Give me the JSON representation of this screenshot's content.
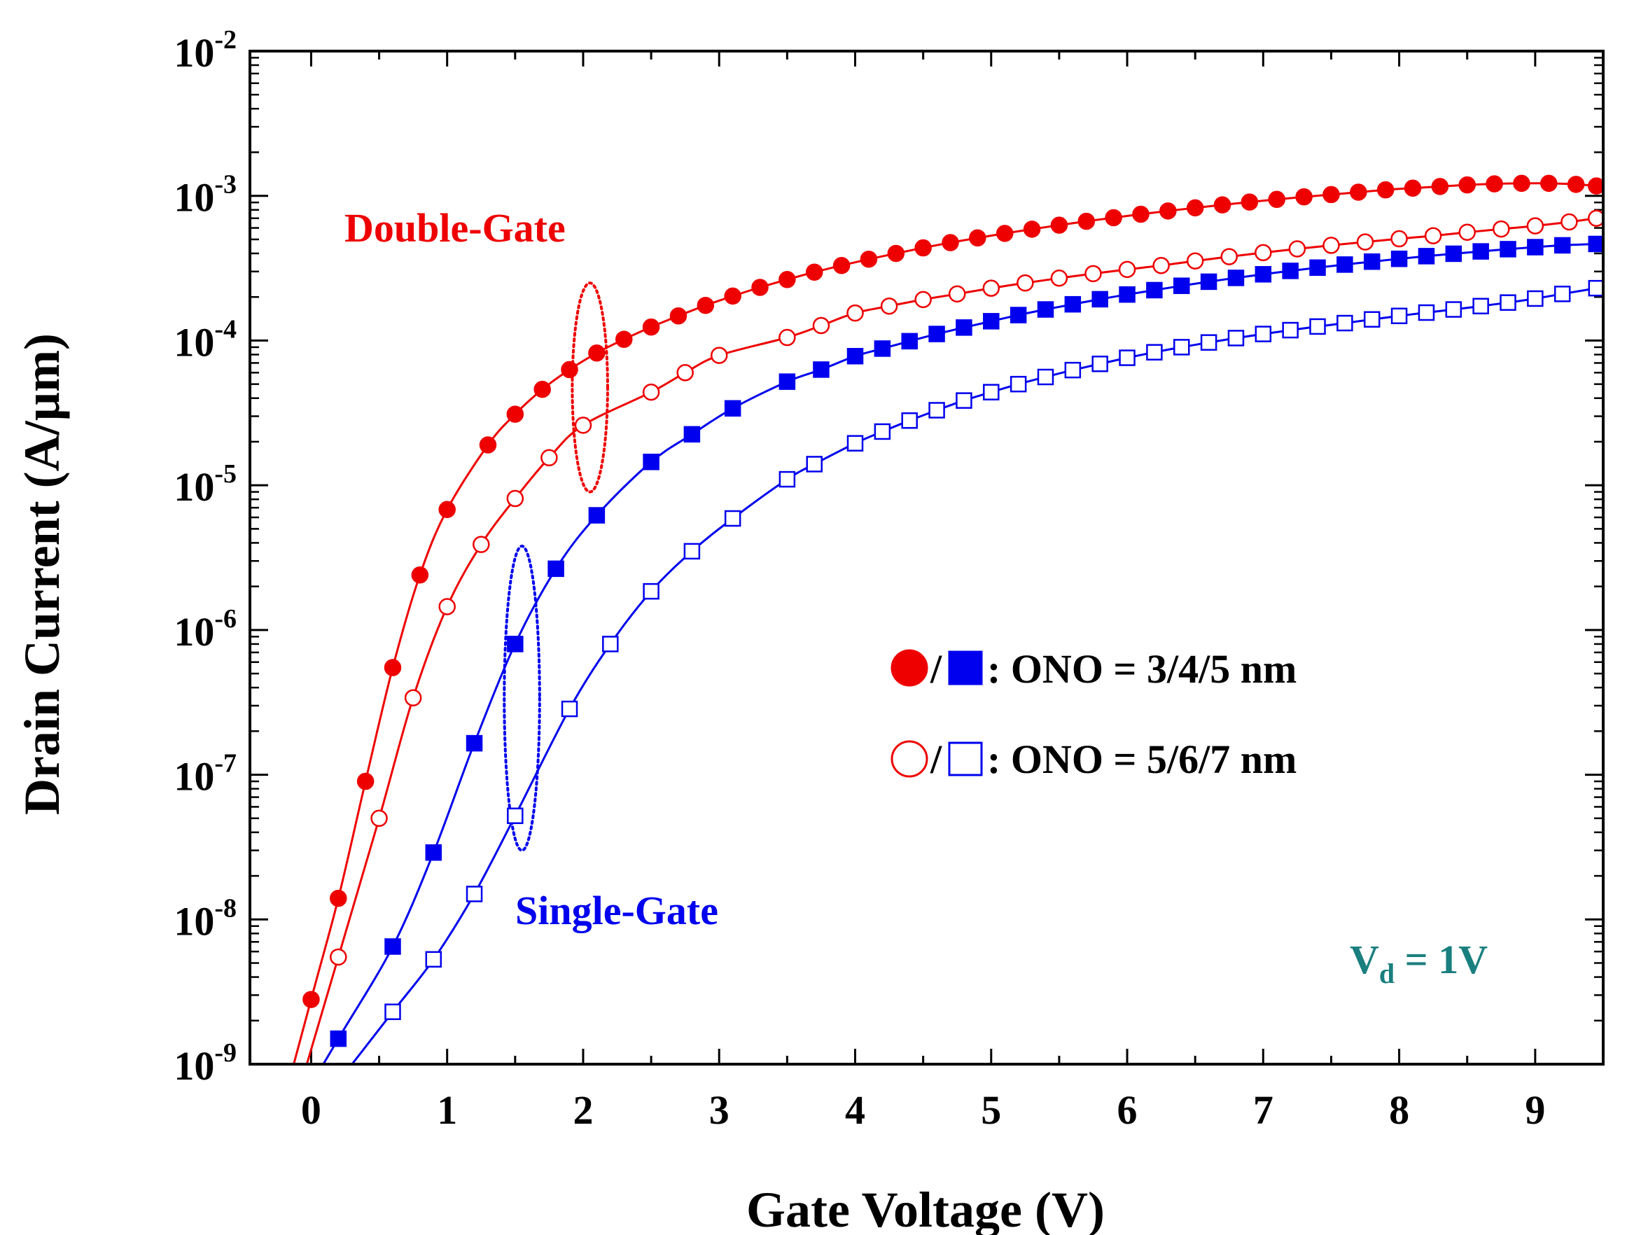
{
  "chart_data": {
    "type": "line",
    "xlabel": "Gate Voltage (V)",
    "ylabel": "Drain Current (A/µm)",
    "xlim": [
      -0.45,
      9.5
    ],
    "ylim": [
      1e-09,
      0.01
    ],
    "yscale": "log",
    "x_ticks": [
      "0",
      "1",
      "2",
      "3",
      "4",
      "5",
      "6",
      "7",
      "8",
      "9"
    ],
    "y_ticks": [
      {
        "base": "10",
        "exp": "-9"
      },
      {
        "base": "10",
        "exp": "-8"
      },
      {
        "base": "10",
        "exp": "-7"
      },
      {
        "base": "10",
        "exp": "-6"
      },
      {
        "base": "10",
        "exp": "-5"
      },
      {
        "base": "10",
        "exp": "-4"
      },
      {
        "base": "10",
        "exp": "-3"
      },
      {
        "base": "10",
        "exp": "-2"
      }
    ],
    "colors": {
      "red": "#ee0000",
      "blue": "#0000ee",
      "teal": "#1a7f7f"
    },
    "series": [
      {
        "name": "Double-Gate, ONO = 3/4/5 nm",
        "color": "#ee0000",
        "marker": "circle",
        "filled": true,
        "x": [
          0.0,
          0.2,
          0.4,
          0.6,
          0.8,
          1.0,
          1.3,
          1.5,
          1.7,
          1.9,
          2.1,
          2.3,
          2.5,
          2.7,
          2.9,
          3.1,
          3.3,
          3.5,
          3.7,
          3.9,
          4.1,
          4.3,
          4.5,
          4.7,
          4.9,
          5.1,
          5.3,
          5.5,
          5.7,
          5.9,
          6.1,
          6.3,
          6.5,
          6.7,
          6.9,
          7.1,
          7.3,
          7.5,
          7.7,
          7.9,
          8.1,
          8.3,
          8.5,
          8.7,
          8.9,
          9.1,
          9.3,
          9.45
        ],
        "y": [
          2.8e-09,
          1.4e-08,
          9e-08,
          5.5e-07,
          2.4e-06,
          6.8e-06,
          1.9e-05,
          3.1e-05,
          4.6e-05,
          6.3e-05,
          8.2e-05,
          0.000102,
          0.000124,
          0.000148,
          0.000175,
          0.000203,
          0.000233,
          0.000264,
          0.000297,
          0.00033,
          0.000365,
          0.0004,
          0.000437,
          0.000475,
          0.000512,
          0.00055,
          0.000588,
          0.000627,
          0.000667,
          0.000706,
          0.000746,
          0.000786,
          0.000826,
          0.000866,
          0.000906,
          0.000945,
          0.000984,
          0.00102,
          0.00106,
          0.0011,
          0.00113,
          0.00116,
          0.00119,
          0.00121,
          0.00122,
          0.00122,
          0.0012,
          0.00117
        ]
      },
      {
        "name": "Double-Gate, ONO = 5/6/7 nm",
        "color": "#ee0000",
        "marker": "circle",
        "filled": false,
        "x": [
          0.2,
          0.5,
          0.75,
          1.0,
          1.25,
          1.5,
          1.75,
          2.0,
          2.5,
          2.75,
          3.0,
          3.5,
          3.75,
          4.0,
          4.25,
          4.5,
          4.75,
          5.0,
          5.25,
          5.5,
          5.75,
          6.0,
          6.25,
          6.5,
          6.75,
          7.0,
          7.25,
          7.5,
          7.75,
          8.0,
          8.25,
          8.5,
          8.75,
          9.0,
          9.25,
          9.45
        ],
        "y": [
          5.5e-09,
          5e-08,
          3.4e-07,
          1.45e-06,
          3.9e-06,
          8.1e-06,
          1.55e-05,
          2.6e-05,
          4.4e-05,
          6e-05,
          7.9e-05,
          0.000105,
          0.000127,
          0.000155,
          0.000173,
          0.000192,
          0.00021,
          0.00023,
          0.00025,
          0.00027,
          0.00029,
          0.00031,
          0.00033,
          0.000355,
          0.00038,
          0.000405,
          0.00043,
          0.000455,
          0.00048,
          0.000505,
          0.00053,
          0.00056,
          0.00059,
          0.00062,
          0.00066,
          0.0007
        ]
      },
      {
        "name": "Single-Gate, ONO = 3/4/5 nm",
        "color": "#0000ee",
        "marker": "square",
        "filled": true,
        "x": [
          0.2,
          0.6,
          0.9,
          1.2,
          1.5,
          1.8,
          2.1,
          2.5,
          2.8,
          3.1,
          3.5,
          3.75,
          4.0,
          4.2,
          4.4,
          4.6,
          4.8,
          5.0,
          5.2,
          5.4,
          5.6,
          5.8,
          6.0,
          6.2,
          6.4,
          6.6,
          6.8,
          7.0,
          7.2,
          7.4,
          7.6,
          7.8,
          8.0,
          8.2,
          8.4,
          8.6,
          8.8,
          9.0,
          9.2,
          9.45
        ],
        "y": [
          1.5e-09,
          6.5e-09,
          2.9e-08,
          1.65e-07,
          8e-07,
          2.65e-06,
          6.2e-06,
          1.45e-05,
          2.25e-05,
          3.4e-05,
          5.2e-05,
          6.3e-05,
          7.8e-05,
          8.8e-05,
          9.9e-05,
          0.000111,
          0.000123,
          0.000136,
          0.00015,
          0.000164,
          0.000178,
          0.000193,
          0.000208,
          0.000223,
          0.000239,
          0.000255,
          0.000271,
          0.000287,
          0.000303,
          0.000319,
          0.000335,
          0.000351,
          0.000367,
          0.000383,
          0.000398,
          0.000413,
          0.000428,
          0.000442,
          0.000455,
          0.000465
        ]
      },
      {
        "name": "Single-Gate, ONO = 5/6/7 nm",
        "color": "#0000ee",
        "marker": "square",
        "filled": false,
        "x": [
          0.6,
          0.9,
          1.2,
          1.5,
          1.9,
          2.2,
          2.5,
          2.8,
          3.1,
          3.5,
          3.7,
          4.0,
          4.2,
          4.4,
          4.6,
          4.8,
          5.0,
          5.2,
          5.4,
          5.6,
          5.8,
          6.0,
          6.2,
          6.4,
          6.6,
          6.8,
          7.0,
          7.2,
          7.4,
          7.6,
          7.8,
          8.0,
          8.2,
          8.4,
          8.6,
          8.8,
          9.0,
          9.2,
          9.45
        ],
        "y": [
          2.3e-09,
          5.3e-09,
          1.5e-08,
          5.2e-08,
          2.85e-07,
          8e-07,
          1.85e-06,
          3.5e-06,
          5.9e-06,
          1.1e-05,
          1.4e-05,
          1.95e-05,
          2.35e-05,
          2.8e-05,
          3.3e-05,
          3.85e-05,
          4.4e-05,
          5e-05,
          5.6e-05,
          6.25e-05,
          6.9e-05,
          7.6e-05,
          8.3e-05,
          9e-05,
          9.7e-05,
          0.000104,
          0.000111,
          0.000118,
          0.000125,
          0.000132,
          0.00014,
          0.000148,
          0.000156,
          0.000164,
          0.000173,
          0.000183,
          0.000195,
          0.00021,
          0.00023
        ]
      }
    ],
    "ellipses": [
      {
        "label": "double-gate-ellipse",
        "color": "#ee0000",
        "x": 2.05,
        "y_low": 9e-06,
        "y_high": 0.00025,
        "half_width_v": 0.13
      },
      {
        "label": "single-gate-ellipse",
        "color": "#0000ee",
        "x": 1.55,
        "y_low": 3e-08,
        "y_high": 3.8e-06,
        "half_width_v": 0.13
      }
    ],
    "annotations": {
      "double_gate": "Double-Gate",
      "single_gate": "Single-Gate",
      "vd_base": "V",
      "vd_sub": "d",
      "vd_rest": " = 1V"
    },
    "legend": {
      "position": "middle-right",
      "entries": [
        {
          "sep": "/",
          "text": ": ONO = 3/4/5 nm",
          "filled": true
        },
        {
          "sep": "/",
          "text": ": ONO = 5/6/7 nm",
          "filled": false
        }
      ]
    }
  }
}
